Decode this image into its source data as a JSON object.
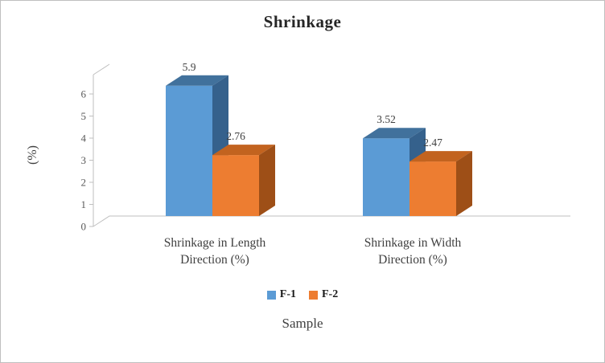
{
  "chart_data": {
    "type": "bar",
    "variant": "3d-clustered-column",
    "title": "Shrinkage",
    "xlabel": "Sample",
    "ylabel": "(%)",
    "categories": [
      "Shrinkage in Length Direction (%)",
      "Shrinkage in Width Direction (%)"
    ],
    "category_lines": [
      [
        "Shrinkage in Length",
        "Direction (%)"
      ],
      [
        "Shrinkage in Width",
        "Direction (%)"
      ]
    ],
    "series": [
      {
        "name": "F-1",
        "values": [
          5.9,
          3.52
        ],
        "color": "#5B9BD5",
        "top_color": "#41719C",
        "side_color": "#35618C"
      },
      {
        "name": "F-2",
        "values": [
          2.76,
          2.47
        ],
        "color": "#ED7D31",
        "top_color": "#C2631F",
        "side_color": "#9E4F17"
      }
    ],
    "data_labels": [
      [
        "5.9",
        "3.52"
      ],
      [
        "2.76",
        "2.47"
      ]
    ],
    "ylim": [
      0,
      6
    ],
    "y_ticks": [
      "0",
      "1",
      "2",
      "3",
      "4",
      "5",
      "6"
    ],
    "legend_position": "bottom",
    "grid": false,
    "axis_color": "#BFBFBF"
  }
}
